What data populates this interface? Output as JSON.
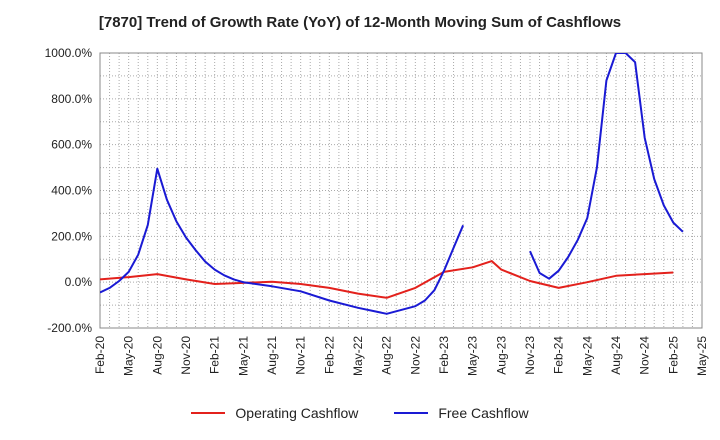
{
  "title": "[7870]  Trend of Growth Rate (YoY) of 12-Month Moving Sum of Cashflows",
  "colors": {
    "operating": "#e3211c",
    "free": "#1a1ad4",
    "grid": "#aaaaaa",
    "axis": "#888888"
  },
  "chart_data": {
    "type": "line",
    "title": "[7870]  Trend of Growth Rate (YoY) of 12-Month Moving Sum of Cashflows",
    "xlabel": "",
    "ylabel": "",
    "x_ticks": [
      "Feb-20",
      "May-20",
      "Aug-20",
      "Nov-20",
      "Feb-21",
      "May-21",
      "Aug-21",
      "Nov-21",
      "Feb-22",
      "May-22",
      "Aug-22",
      "Nov-22",
      "Feb-23",
      "May-23",
      "Aug-23",
      "Nov-23",
      "Feb-24",
      "May-24",
      "Aug-24",
      "Nov-24",
      "Feb-25",
      "May-25"
    ],
    "y_ticks": [
      "1000.0%",
      "800.0%",
      "600.0%",
      "400.0%",
      "200.0%",
      "0.0%",
      "-200.0%"
    ],
    "y_tick_values": [
      1000,
      800,
      600,
      400,
      200,
      0,
      -200
    ],
    "ylim": [
      -200,
      1000
    ],
    "x_range": [
      "Feb-20",
      "May-25"
    ],
    "grid": true,
    "legend_position": "bottom",
    "series": [
      {
        "name": "Operating Cashflow",
        "color": "#e3211c",
        "points": [
          [
            "Feb-20",
            12
          ],
          [
            "May-20",
            22
          ],
          [
            "Aug-20",
            35
          ],
          [
            "Nov-20",
            12
          ],
          [
            "Feb-21",
            -8
          ],
          [
            "May-21",
            -3
          ],
          [
            "Aug-21",
            2
          ],
          [
            "Nov-21",
            -8
          ],
          [
            "Feb-22",
            -25
          ],
          [
            "May-22",
            -50
          ],
          [
            "Aug-22",
            -68
          ],
          [
            "Nov-22",
            -25
          ],
          [
            "Feb-23",
            45
          ],
          [
            "May-23",
            65
          ],
          [
            "Jul-23",
            92
          ],
          [
            "Aug-23",
            55
          ],
          [
            "Nov-23",
            5
          ],
          [
            "Feb-24",
            -25
          ],
          [
            "May-24",
            0
          ],
          [
            "Aug-24",
            28
          ],
          [
            "Nov-24",
            35
          ],
          [
            "Feb-25",
            42
          ]
        ]
      },
      {
        "name": "Free Cashflow",
        "color": "#1a1ad4",
        "segments": [
          [
            [
              "Feb-20",
              -45
            ],
            [
              "Mar-20",
              -25
            ],
            [
              "Apr-20",
              5
            ],
            [
              "May-20",
              45
            ],
            [
              "Jun-20",
              120
            ],
            [
              "Jul-20",
              250
            ],
            [
              "Aug-20",
              495
            ],
            [
              "Sep-20",
              360
            ],
            [
              "Oct-20",
              265
            ],
            [
              "Nov-20",
              195
            ],
            [
              "Dec-20",
              140
            ],
            [
              "Jan-21",
              90
            ],
            [
              "Feb-21",
              55
            ],
            [
              "Mar-21",
              30
            ],
            [
              "Apr-21",
              12
            ],
            [
              "May-21",
              0
            ],
            [
              "Aug-21",
              -18
            ],
            [
              "Nov-21",
              -40
            ],
            [
              "Feb-22",
              -80
            ],
            [
              "May-22",
              -112
            ],
            [
              "Aug-22",
              -138
            ],
            [
              "Nov-22",
              -105
            ],
            [
              "Dec-22",
              -80
            ],
            [
              "Jan-23",
              -35
            ],
            [
              "Feb-23",
              50
            ],
            [
              "Mar-23",
              150
            ],
            [
              "Apr-23",
              248
            ]
          ],
          [
            [
              "Nov-23",
              135
            ],
            [
              "Dec-23",
              40
            ],
            [
              "Jan-24",
              15
            ],
            [
              "Feb-24",
              50
            ],
            [
              "Mar-24",
              110
            ],
            [
              "Apr-24",
              185
            ],
            [
              "May-24",
              280
            ],
            [
              "Jun-24",
              500
            ],
            [
              "Jul-24",
              880
            ],
            [
              "Aug-24",
              1000
            ],
            [
              "Sep-24",
              1000
            ],
            [
              "Oct-24",
              960
            ],
            [
              "Nov-24",
              630
            ],
            [
              "Dec-24",
              450
            ],
            [
              "Jan-25",
              335
            ],
            [
              "Feb-25",
              260
            ],
            [
              "Mar-25",
              220
            ]
          ]
        ]
      }
    ]
  },
  "legend": [
    {
      "label": "Operating Cashflow",
      "color": "#e3211c"
    },
    {
      "label": "Free Cashflow",
      "color": "#1a1ad4"
    }
  ]
}
